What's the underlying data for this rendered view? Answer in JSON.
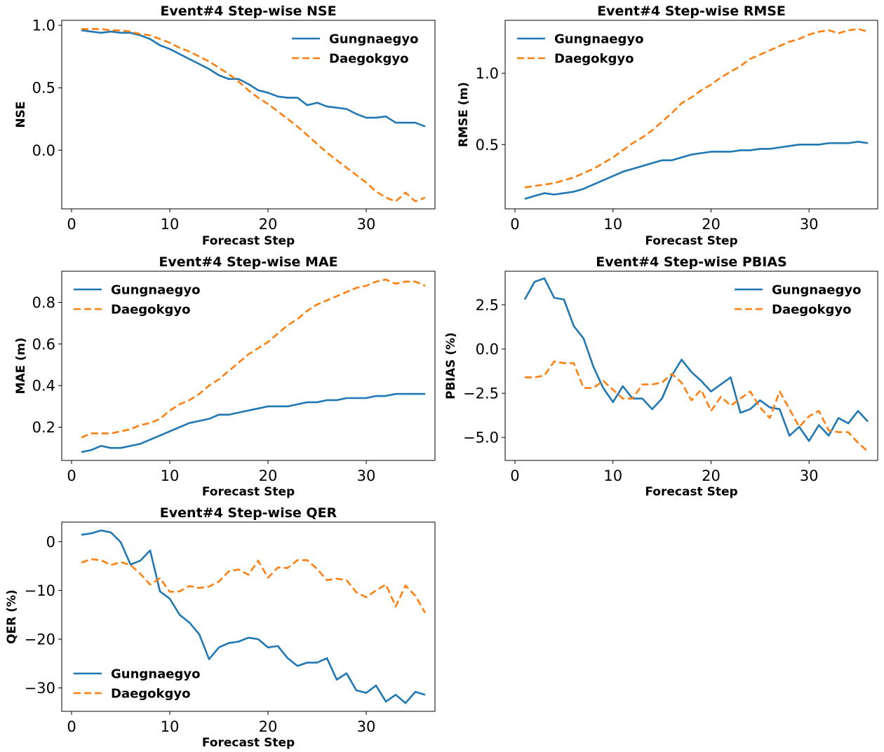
{
  "colors": {
    "Gungnaegyo": "#1f77b4",
    "Daegokgyo": "#ff7f0e"
  },
  "chart_data": [
    {
      "type": "line",
      "title": "Event#4 Step-wise NSE",
      "xlabel": "Forecast Step",
      "ylabel": "NSE",
      "xlim": [
        -1,
        37
      ],
      "ylim": [
        -0.47,
        1.04
      ],
      "xticks": [
        0,
        10,
        20,
        30
      ],
      "yticks": [
        0.0,
        0.5,
        1.0
      ],
      "ytick_labels": [
        "0.0",
        "0.5",
        "1.0"
      ],
      "legend": "upper right",
      "x": [
        1,
        2,
        3,
        4,
        5,
        6,
        7,
        8,
        9,
        10,
        11,
        12,
        13,
        14,
        15,
        16,
        17,
        18,
        19,
        20,
        21,
        22,
        23,
        24,
        25,
        26,
        27,
        28,
        29,
        30,
        31,
        32,
        33,
        34,
        35,
        36
      ],
      "series": [
        {
          "name": "Gungnaegyo",
          "style": "solid",
          "values": [
            0.96,
            0.95,
            0.94,
            0.95,
            0.94,
            0.94,
            0.92,
            0.89,
            0.84,
            0.81,
            0.77,
            0.73,
            0.69,
            0.65,
            0.6,
            0.57,
            0.57,
            0.53,
            0.48,
            0.46,
            0.43,
            0.42,
            0.42,
            0.36,
            0.38,
            0.35,
            0.34,
            0.33,
            0.29,
            0.26,
            0.26,
            0.27,
            0.22,
            0.22,
            0.22,
            0.19
          ]
        },
        {
          "name": "Daegokgyo",
          "style": "dashed",
          "values": [
            0.97,
            0.97,
            0.97,
            0.96,
            0.96,
            0.95,
            0.93,
            0.92,
            0.89,
            0.86,
            0.82,
            0.79,
            0.75,
            0.71,
            0.66,
            0.61,
            0.55,
            0.48,
            0.42,
            0.37,
            0.31,
            0.25,
            0.19,
            0.12,
            0.05,
            -0.02,
            -0.08,
            -0.14,
            -0.2,
            -0.26,
            -0.33,
            -0.38,
            -0.41,
            -0.34,
            -0.41,
            -0.38
          ]
        }
      ]
    },
    {
      "type": "line",
      "title": "Event#4 Step-wise RMSE",
      "xlabel": "Forecast Step",
      "ylabel": "RMSE (m)",
      "xlim": [
        -1,
        37
      ],
      "ylim": [
        0.05,
        1.37
      ],
      "xticks": [
        0,
        10,
        20,
        30
      ],
      "yticks": [
        0.5,
        1.0
      ],
      "ytick_labels": [
        "0.5",
        "1.0"
      ],
      "legend": "upper left",
      "x": [
        1,
        2,
        3,
        4,
        5,
        6,
        7,
        8,
        9,
        10,
        11,
        12,
        13,
        14,
        15,
        16,
        17,
        18,
        19,
        20,
        21,
        22,
        23,
        24,
        25,
        26,
        27,
        28,
        29,
        30,
        31,
        32,
        33,
        34,
        35,
        36
      ],
      "series": [
        {
          "name": "Gungnaegyo",
          "style": "solid",
          "values": [
            0.12,
            0.14,
            0.16,
            0.15,
            0.16,
            0.17,
            0.19,
            0.22,
            0.25,
            0.28,
            0.31,
            0.33,
            0.35,
            0.37,
            0.39,
            0.39,
            0.41,
            0.43,
            0.44,
            0.45,
            0.45,
            0.45,
            0.46,
            0.46,
            0.47,
            0.47,
            0.48,
            0.49,
            0.5,
            0.5,
            0.5,
            0.51,
            0.51,
            0.51,
            0.52,
            0.51
          ]
        },
        {
          "name": "Daegokgyo",
          "style": "dashed",
          "values": [
            0.2,
            0.21,
            0.22,
            0.23,
            0.25,
            0.27,
            0.3,
            0.33,
            0.37,
            0.41,
            0.46,
            0.51,
            0.55,
            0.6,
            0.66,
            0.72,
            0.79,
            0.83,
            0.88,
            0.92,
            0.97,
            1.01,
            1.05,
            1.1,
            1.13,
            1.16,
            1.19,
            1.22,
            1.24,
            1.27,
            1.29,
            1.3,
            1.28,
            1.3,
            1.31,
            1.29
          ]
        }
      ]
    },
    {
      "type": "line",
      "title": "Event#4 Step-wise MAE",
      "xlabel": "Forecast Step",
      "ylabel": "MAE (m)",
      "xlim": [
        -1,
        37
      ],
      "ylim": [
        0.04,
        0.95
      ],
      "xticks": [
        0,
        10,
        20,
        30
      ],
      "yticks": [
        0.2,
        0.4,
        0.6,
        0.8
      ],
      "ytick_labels": [
        "0.2",
        "0.4",
        "0.6",
        "0.8"
      ],
      "legend": "upper left",
      "x": [
        1,
        2,
        3,
        4,
        5,
        6,
        7,
        8,
        9,
        10,
        11,
        12,
        13,
        14,
        15,
        16,
        17,
        18,
        19,
        20,
        21,
        22,
        23,
        24,
        25,
        26,
        27,
        28,
        29,
        30,
        31,
        32,
        33,
        34,
        35,
        36
      ],
      "series": [
        {
          "name": "Gungnaegyo",
          "style": "solid",
          "values": [
            0.08,
            0.09,
            0.11,
            0.1,
            0.1,
            0.11,
            0.12,
            0.14,
            0.16,
            0.18,
            0.2,
            0.22,
            0.23,
            0.24,
            0.26,
            0.26,
            0.27,
            0.28,
            0.29,
            0.3,
            0.3,
            0.3,
            0.31,
            0.32,
            0.32,
            0.33,
            0.33,
            0.34,
            0.34,
            0.34,
            0.35,
            0.35,
            0.36,
            0.36,
            0.36,
            0.36
          ]
        },
        {
          "name": "Daegokgyo",
          "style": "dashed",
          "values": [
            0.15,
            0.17,
            0.17,
            0.17,
            0.18,
            0.19,
            0.21,
            0.22,
            0.24,
            0.28,
            0.31,
            0.33,
            0.36,
            0.4,
            0.43,
            0.47,
            0.51,
            0.55,
            0.58,
            0.61,
            0.65,
            0.69,
            0.72,
            0.76,
            0.79,
            0.81,
            0.83,
            0.85,
            0.87,
            0.88,
            0.9,
            0.91,
            0.89,
            0.9,
            0.9,
            0.88
          ]
        }
      ]
    },
    {
      "type": "line",
      "title": "Event#4 Step-wise PBIAS",
      "xlabel": "Forecast Step",
      "ylabel": "PBIAS (%)",
      "xlim": [
        -1,
        37
      ],
      "ylim": [
        -6.3,
        4.4
      ],
      "xticks": [
        0,
        10,
        20,
        30
      ],
      "yticks": [
        -5.0,
        -2.5,
        0.0,
        2.5
      ],
      "ytick_labels": [
        "−5.0",
        "−2.5",
        "0.0",
        "2.5"
      ],
      "legend": "upper right",
      "x": [
        1,
        2,
        3,
        4,
        5,
        6,
        7,
        8,
        9,
        10,
        11,
        12,
        13,
        14,
        15,
        16,
        17,
        18,
        19,
        20,
        21,
        22,
        23,
        24,
        25,
        26,
        27,
        28,
        29,
        30,
        31,
        32,
        33,
        34,
        35,
        36
      ],
      "series": [
        {
          "name": "Gungnaegyo",
          "style": "solid",
          "values": [
            2.8,
            3.8,
            4.0,
            2.9,
            2.8,
            1.3,
            0.6,
            -1.0,
            -2.2,
            -3.0,
            -2.1,
            -2.8,
            -2.8,
            -3.4,
            -2.8,
            -1.5,
            -0.6,
            -1.3,
            -1.8,
            -2.4,
            -2.0,
            -1.6,
            -3.6,
            -3.4,
            -2.9,
            -3.3,
            -3.4,
            -4.9,
            -4.4,
            -5.2,
            -4.3,
            -4.9,
            -3.9,
            -4.2,
            -3.5,
            -4.1
          ]
        },
        {
          "name": "Daegokgyo",
          "style": "dashed",
          "values": [
            -1.6,
            -1.6,
            -1.5,
            -0.7,
            -0.8,
            -0.8,
            -2.2,
            -2.2,
            -1.8,
            -2.3,
            -2.8,
            -2.8,
            -2.0,
            -2.0,
            -1.9,
            -1.4,
            -1.9,
            -2.9,
            -2.3,
            -3.5,
            -2.7,
            -3.2,
            -2.8,
            -2.4,
            -3.3,
            -3.9,
            -2.4,
            -3.4,
            -4.4,
            -3.8,
            -3.5,
            -4.6,
            -4.7,
            -4.7,
            -5.3,
            -5.8
          ]
        }
      ]
    },
    {
      "type": "line",
      "title": "Event#4 Step-wise QER",
      "xlabel": "Forecast Step",
      "ylabel": "QER (%)",
      "xlim": [
        -1,
        37
      ],
      "ylim": [
        -34.8,
        4.0
      ],
      "xticks": [
        0,
        10,
        20,
        30
      ],
      "yticks": [
        -30,
        -20,
        -10,
        0
      ],
      "ytick_labels": [
        "−30",
        "−20",
        "−10",
        "0"
      ],
      "legend": "lower left",
      "x": [
        1,
        2,
        3,
        4,
        5,
        6,
        7,
        8,
        9,
        10,
        11,
        12,
        13,
        14,
        15,
        16,
        17,
        18,
        19,
        20,
        21,
        22,
        23,
        24,
        25,
        26,
        27,
        28,
        29,
        30,
        31,
        32,
        33,
        34,
        35,
        36
      ],
      "series": [
        {
          "name": "Gungnaegyo",
          "style": "solid",
          "values": [
            1.4,
            1.7,
            2.3,
            1.9,
            -0.1,
            -4.7,
            -3.9,
            -1.8,
            -10.2,
            -11.7,
            -15.0,
            -16.6,
            -19.0,
            -24.1,
            -21.7,
            -20.8,
            -20.5,
            -19.7,
            -20.0,
            -21.7,
            -21.4,
            -23.9,
            -25.5,
            -24.8,
            -24.8,
            -23.9,
            -28.3,
            -27.0,
            -30.5,
            -31.0,
            -29.5,
            -32.8,
            -31.4,
            -33.1,
            -30.8,
            -31.4
          ]
        },
        {
          "name": "Daegokgyo",
          "style": "dashed",
          "values": [
            -4.3,
            -3.6,
            -3.8,
            -4.8,
            -4.2,
            -4.8,
            -6.6,
            -8.8,
            -7.5,
            -10.3,
            -10.2,
            -9.1,
            -9.5,
            -9.2,
            -8.2,
            -6.1,
            -5.7,
            -6.8,
            -3.9,
            -7.4,
            -5.3,
            -5.4,
            -3.8,
            -3.8,
            -5.6,
            -7.9,
            -7.6,
            -7.9,
            -10.4,
            -11.4,
            -10.0,
            -8.8,
            -13.3,
            -9.0,
            -11.1,
            -14.6
          ]
        }
      ]
    }
  ]
}
